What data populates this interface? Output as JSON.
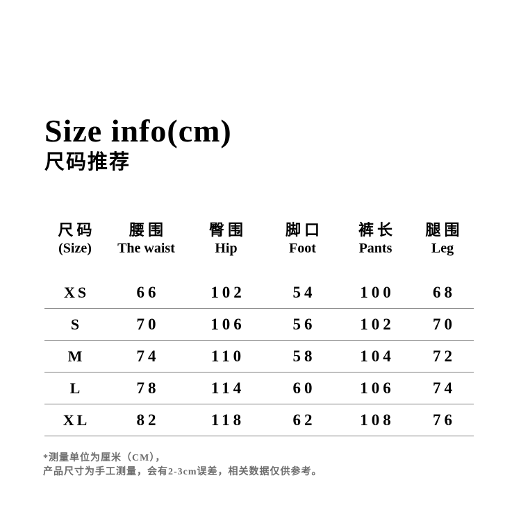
{
  "header": {
    "title": "Size info(cm)",
    "subtitle": "尺码推荐"
  },
  "table": {
    "columns": [
      {
        "zh": "尺码",
        "en": "(Size)"
      },
      {
        "zh": "腰围",
        "en": "The waist"
      },
      {
        "zh": "臀围",
        "en": "Hip"
      },
      {
        "zh": "脚口",
        "en": "Foot"
      },
      {
        "zh": "裤长",
        "en": "Pants"
      },
      {
        "zh": "腿围",
        "en": "Leg"
      }
    ],
    "rows": [
      {
        "size": "XS",
        "values": [
          "66",
          "102",
          "54",
          "100",
          "68"
        ]
      },
      {
        "size": "S",
        "values": [
          "70",
          "106",
          "56",
          "102",
          "70"
        ]
      },
      {
        "size": "M",
        "values": [
          "74",
          "110",
          "58",
          "104",
          "72"
        ]
      },
      {
        "size": "L",
        "values": [
          "78",
          "114",
          "60",
          "106",
          "74"
        ]
      },
      {
        "size": "XL",
        "values": [
          "82",
          "118",
          "62",
          "108",
          "76"
        ]
      }
    ]
  },
  "footnote": {
    "line1": "*测量单位为厘米（CM），",
    "line2": "产品尺寸为手工测量，会有2-3cm误差，相关数据仅供参考。"
  },
  "colors": {
    "background": "#ffffff",
    "text": "#000000",
    "divider": "#808080",
    "footnote_text": "#6e6e6e"
  }
}
